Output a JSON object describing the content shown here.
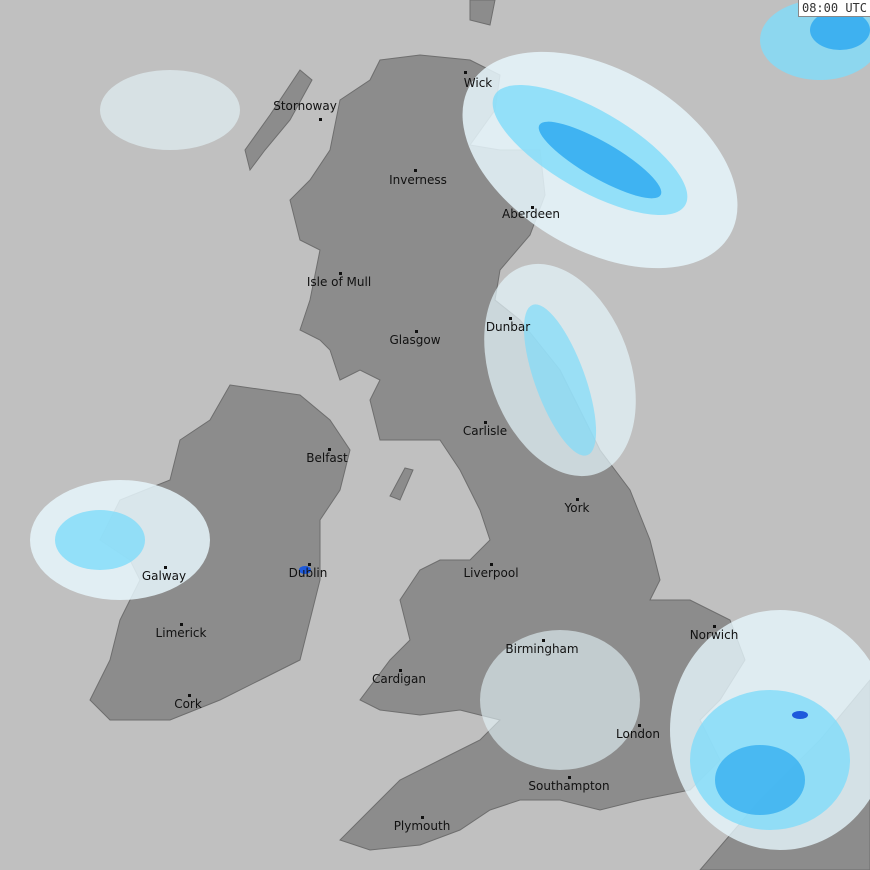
{
  "timestamp": "08:00 UTC",
  "colors": {
    "sea": "#c0c0c0",
    "land": "#8c8c8c",
    "precip_light": "#e6f6fc",
    "precip_mid": "#7fdcfa",
    "precip_heavy": "#2aa8f0",
    "precip_intense": "#1e5adc"
  },
  "cities": [
    {
      "name": "Stornoway"
    },
    {
      "name": "Wick"
    },
    {
      "name": "Inverness"
    },
    {
      "name": "Aberdeen"
    },
    {
      "name": "Isle of Mull"
    },
    {
      "name": "Glasgow"
    },
    {
      "name": "Dunbar"
    },
    {
      "name": "Belfast"
    },
    {
      "name": "Carlisle"
    },
    {
      "name": "York"
    },
    {
      "name": "Galway"
    },
    {
      "name": "Dublin"
    },
    {
      "name": "Liverpool"
    },
    {
      "name": "Limerick"
    },
    {
      "name": "Birmingham"
    },
    {
      "name": "Norwich"
    },
    {
      "name": "Cardigan"
    },
    {
      "name": "Cork"
    },
    {
      "name": "London"
    },
    {
      "name": "Southampton"
    },
    {
      "name": "Plymouth"
    }
  ]
}
